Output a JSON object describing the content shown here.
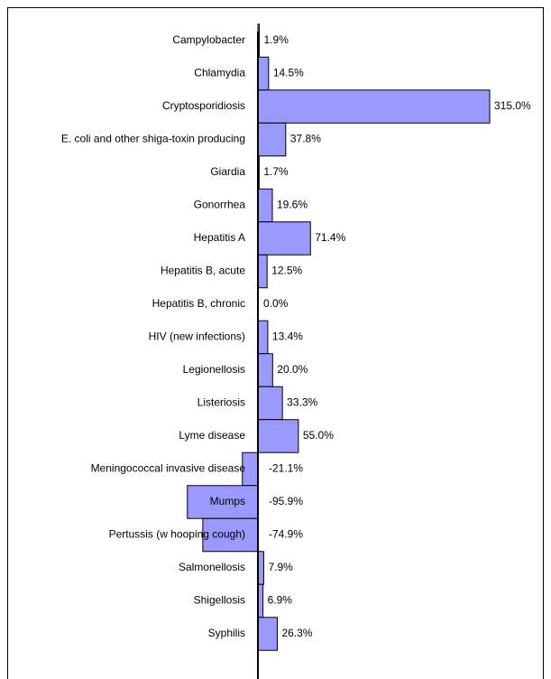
{
  "chart_data": {
    "type": "bar",
    "orientation": "horizontal",
    "color": "#9999ff",
    "categories": [
      "Campylobacter",
      "Chlamydia",
      "Cryptosporidiosis",
      "E. coli and other shiga-toxin producing",
      "Giardia",
      "Gonorrhea",
      "Hepatitis A",
      "Hepatitis B, acute",
      "Hepatitis B, chronic",
      "HIV (new infections)",
      "Legionellosis",
      "Listeriosis",
      "Lyme disease",
      "Meningococcal invasive disease",
      "Mumps",
      "Pertussis (w hooping cough)",
      "Salmonellosis",
      "Shigellosis",
      "Syphilis"
    ],
    "values": [
      1.9,
      14.5,
      315.0,
      37.8,
      1.7,
      19.6,
      71.4,
      12.5,
      0.0,
      13.4,
      20.0,
      33.3,
      55.0,
      -21.1,
      -95.9,
      -74.9,
      7.9,
      6.9,
      26.3
    ],
    "value_labels": [
      "1.9%",
      "14.5%",
      "315.0%",
      "37.8%",
      "1.7%",
      "19.6%",
      "71.4%",
      "12.5%",
      "0.0%",
      "13.4%",
      "20.0%",
      "33.3%",
      "55.0%",
      "-21.1%",
      "-95.9%",
      "-74.9%",
      "7.9%",
      "6.9%",
      "26.3%"
    ]
  }
}
